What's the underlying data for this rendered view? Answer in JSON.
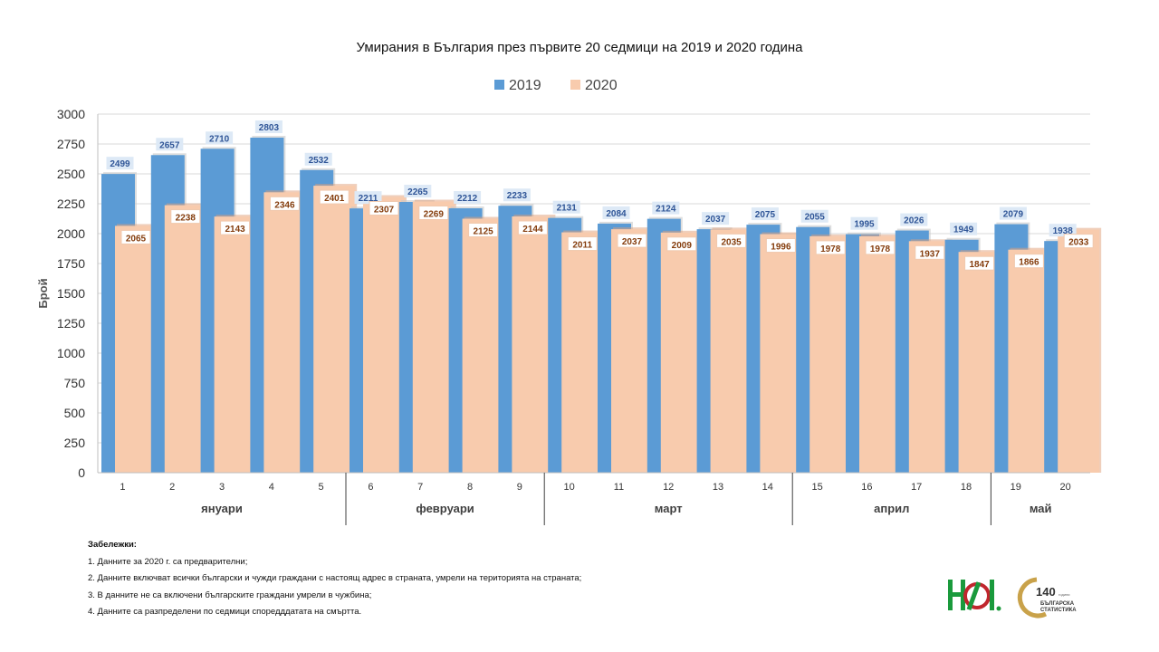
{
  "chart_data": {
    "type": "bar",
    "title": "Умирания в България през първите 20 седмици на 2019 и 2020 година",
    "ylabel": "Брой",
    "xlabel": "",
    "ylim": [
      0,
      3000
    ],
    "yticks": [
      "0",
      "250",
      "500",
      "750",
      "1000",
      "1250",
      "1500",
      "1750",
      "2000",
      "2250",
      "2500",
      "2750",
      "3000"
    ],
    "categories": [
      "1",
      "2",
      "3",
      "4",
      "5",
      "6",
      "7",
      "8",
      "9",
      "10",
      "11",
      "12",
      "13",
      "14",
      "15",
      "16",
      "17",
      "18",
      "19",
      "20"
    ],
    "month_groups": [
      {
        "label": "януари",
        "weeks": 5
      },
      {
        "label": "февруари",
        "weeks": 4
      },
      {
        "label": "март",
        "weeks": 5
      },
      {
        "label": "април",
        "weeks": 4
      },
      {
        "label": "май",
        "weeks": 2
      }
    ],
    "series": [
      {
        "name": "2019",
        "color": "#5b9bd5",
        "values": [
          2499,
          2657,
          2710,
          2803,
          2532,
          2211,
          2265,
          2212,
          2233,
          2131,
          2084,
          2124,
          2037,
          2075,
          2055,
          1995,
          2026,
          1949,
          2079,
          1938
        ]
      },
      {
        "name": "2020",
        "color": "#f8cbad",
        "values": [
          2065,
          2238,
          2143,
          2346,
          2401,
          2307,
          2269,
          2125,
          2144,
          2011,
          2037,
          2009,
          2035,
          1996,
          1978,
          1978,
          1937,
          1847,
          1866,
          2033
        ]
      }
    ],
    "legend_position": "top-center",
    "grid": true
  },
  "notes": {
    "header": "Забележки:",
    "items": [
      "1. Данните за 2020 г. са предварителни;",
      "2. Данните включват всички български и чужди граждани с настоящ адрес в страната, умрели на територията на страната;",
      "3. В данните не са включени българските граждани умрели в чужбина;",
      "4. Данните са разпределени по седмици споредддатата на смъртта."
    ]
  },
  "logos": {
    "nsi": "нси-logo",
    "anniversary_number": "140",
    "anniversary_sub": "години",
    "anniversary_line1": "БЪЛГАРСКА",
    "anniversary_line2": "СТАТИСТИКА"
  }
}
